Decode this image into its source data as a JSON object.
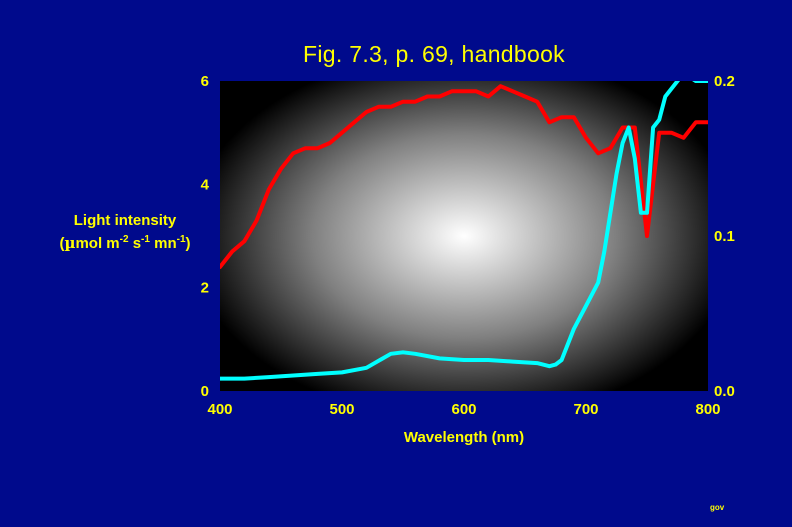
{
  "chart_data": {
    "type": "line",
    "title": "Fig. 7.3, p. 69, handbook",
    "xlabel": "Wavelength (nm)",
    "ylabel": {
      "line1": "Light intensity",
      "line2_prefix": "(",
      "mu": "µ",
      "unit_a": "mol m",
      "exp_a": "-2",
      "unit_b": " s",
      "exp_b": "-1",
      "unit_c": " mn",
      "exp_c": "-1",
      "line2_suffix": ")"
    },
    "xlim": [
      400,
      800
    ],
    "ylim_left": [
      0,
      6
    ],
    "ylim_right": [
      0.0,
      0.2
    ],
    "x_ticks": [
      "400",
      "500",
      "600",
      "700",
      "800"
    ],
    "y_left_ticks": [
      "0",
      "2",
      "4",
      "6"
    ],
    "y_right_ticks": [
      "0.0",
      "0.1",
      "0.2"
    ],
    "background": "radial gradient white center to black edges",
    "series": [
      {
        "axis": "left",
        "color": "#ff0000",
        "x": [
          400,
          410,
          420,
          430,
          440,
          450,
          460,
          470,
          480,
          490,
          500,
          510,
          520,
          530,
          540,
          550,
          560,
          570,
          580,
          590,
          600,
          610,
          620,
          630,
          640,
          650,
          660,
          670,
          680,
          690,
          700,
          710,
          720,
          730,
          740,
          750,
          760,
          770,
          780,
          790,
          800
        ],
        "y": [
          2.4,
          2.7,
          2.9,
          3.3,
          3.9,
          4.3,
          4.6,
          4.7,
          4.7,
          4.8,
          5.0,
          5.2,
          5.4,
          5.5,
          5.5,
          5.6,
          5.6,
          5.7,
          5.7,
          5.8,
          5.8,
          5.8,
          5.7,
          5.9,
          5.8,
          5.7,
          5.6,
          5.2,
          5.3,
          5.3,
          4.9,
          4.6,
          4.7,
          5.1,
          5.1,
          3.0,
          5.0,
          5.0,
          4.9,
          5.2,
          5.2
        ]
      },
      {
        "axis": "right",
        "color": "#00ffff",
        "x": [
          400,
          420,
          440,
          460,
          480,
          500,
          520,
          540,
          550,
          560,
          580,
          600,
          620,
          640,
          660,
          670,
          675,
          680,
          690,
          700,
          710,
          715,
          720,
          725,
          730,
          735,
          740,
          745,
          750,
          755,
          760,
          765,
          770,
          775,
          780,
          790,
          800
        ],
        "y": [
          0.008,
          0.008,
          0.009,
          0.01,
          0.011,
          0.012,
          0.015,
          0.024,
          0.025,
          0.024,
          0.021,
          0.02,
          0.02,
          0.019,
          0.018,
          0.016,
          0.017,
          0.02,
          0.04,
          0.055,
          0.07,
          0.09,
          0.115,
          0.14,
          0.16,
          0.17,
          0.15,
          0.115,
          0.115,
          0.17,
          0.175,
          0.19,
          0.195,
          0.2,
          0.205,
          0.2,
          0.2
        ]
      }
    ]
  },
  "footer_text": "gov"
}
